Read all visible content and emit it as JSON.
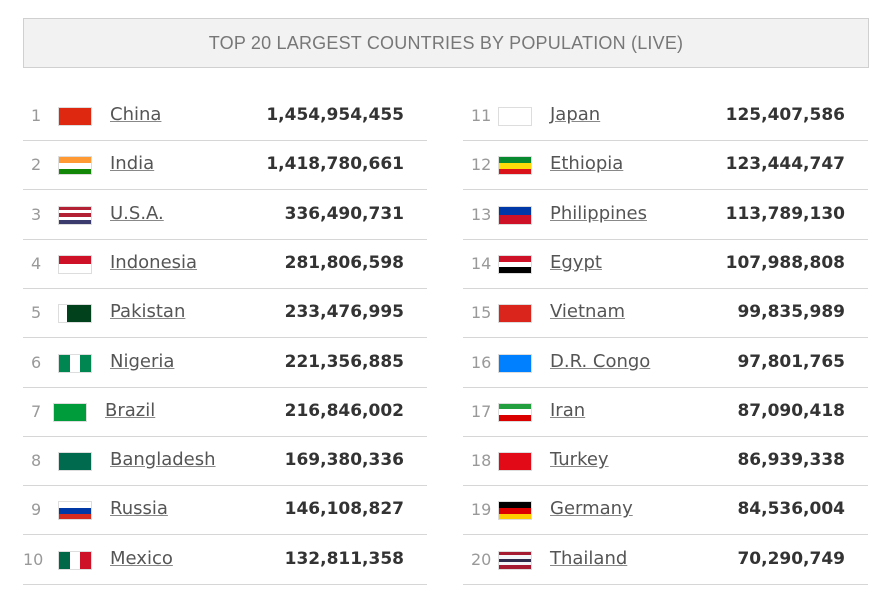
{
  "header": {
    "title": "TOP 20 LARGEST COUNTRIES BY POPULATION (LIVE)"
  },
  "table": {
    "rows": [
      [
        "1",
        "China",
        "1,454,954,455"
      ],
      [
        "2",
        "India",
        "1,418,780,661"
      ],
      [
        "3",
        "U.S.A.",
        "336,490,731"
      ],
      [
        "4",
        "Indonesia",
        "281,806,598"
      ],
      [
        "5",
        "Pakistan",
        "233,476,995"
      ],
      [
        "6",
        "Nigeria",
        "221,356,885"
      ],
      [
        "7",
        "Brazil",
        "216,846,002"
      ],
      [
        "8",
        "Bangladesh",
        "169,380,336"
      ],
      [
        "9",
        "Russia",
        "146,108,827"
      ],
      [
        "10",
        "Mexico",
        "132,811,358"
      ],
      [
        "11",
        "Japan",
        "125,407,586"
      ],
      [
        "12",
        "Ethiopia",
        "123,444,747"
      ],
      [
        "13",
        "Philippines",
        "113,789,130"
      ],
      [
        "14",
        "Egypt",
        "107,988,808"
      ],
      [
        "15",
        "Vietnam",
        "99,835,989"
      ],
      [
        "16",
        "D.R. Congo",
        "97,801,765"
      ],
      [
        "17",
        "Iran",
        "87,090,418"
      ],
      [
        "18",
        "Turkey",
        "86,939,338"
      ],
      [
        "19",
        "Germany",
        "84,536,004"
      ],
      [
        "20",
        "Thailand",
        "70,290,749"
      ]
    ]
  }
}
